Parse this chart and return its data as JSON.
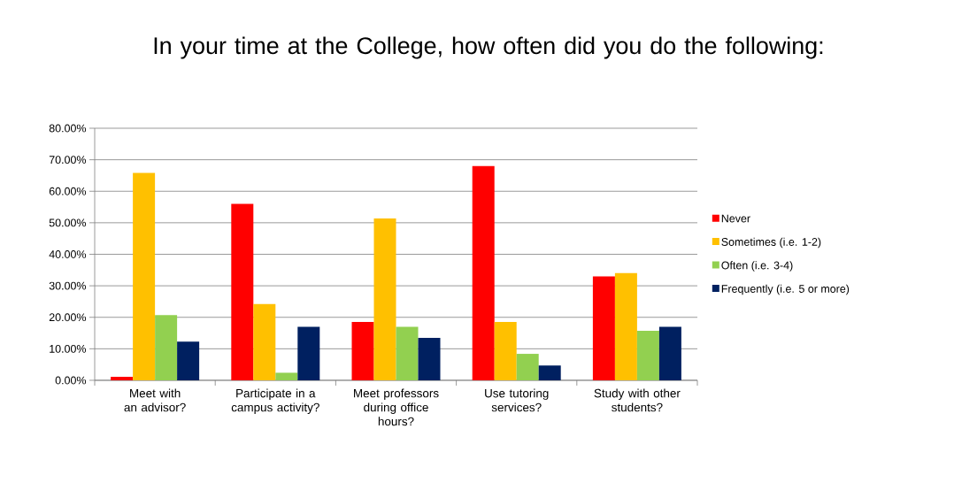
{
  "chart_data": {
    "type": "bar",
    "title": "In your time at the College, how often did you do the following:",
    "categories": [
      "Meet with an advisor?",
      "Participate in a campus activity?",
      "Meet professors during office hours?",
      "Use tutoring services?",
      "Study with other students?"
    ],
    "series": [
      {
        "name": "Never",
        "color": "#ff0000",
        "values": [
          1.1,
          56,
          18.5,
          68,
          33
        ]
      },
      {
        "name": "Sometimes (i.e. 1-2)",
        "color": "#ffc000",
        "values": [
          65.8,
          24.2,
          51.4,
          18.5,
          34
        ]
      },
      {
        "name": "Often (i.e. 3-4)",
        "color": "#92d050",
        "values": [
          20.7,
          2.4,
          17,
          8.4,
          15.7
        ]
      },
      {
        "name": "Frequently (i.e. 5 or more)",
        "color": "#002060",
        "values": [
          12.3,
          17,
          13.5,
          4.7,
          17
        ]
      }
    ],
    "ylim": [
      0,
      80
    ],
    "yticks": [
      {
        "value": 0,
        "label": "0.00%"
      },
      {
        "value": 10,
        "label": "10.00%"
      },
      {
        "value": 20,
        "label": "20.00%"
      },
      {
        "value": 30,
        "label": "30.00%"
      },
      {
        "value": 40,
        "label": "40.00%"
      },
      {
        "value": 50,
        "label": "50.00%"
      },
      {
        "value": 60,
        "label": "60.00%"
      },
      {
        "value": 70,
        "label": "70.00%"
      },
      {
        "value": 80,
        "label": "80.00%"
      }
    ],
    "grid": "y",
    "legend": "right"
  }
}
